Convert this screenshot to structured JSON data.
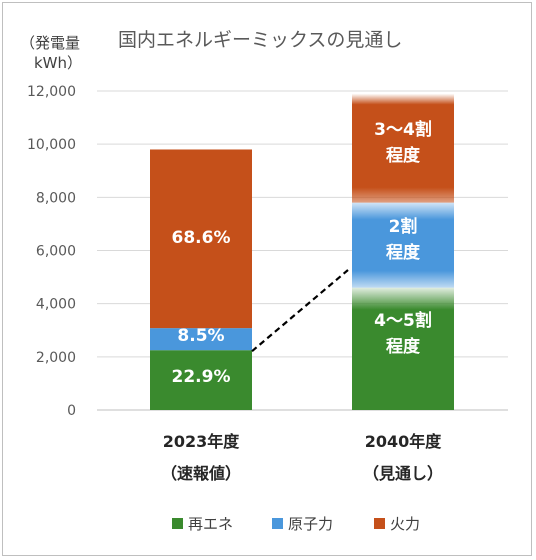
{
  "chart_data": {
    "type": "bar",
    "stacked": true,
    "title": "国内エネルギーミックスの見通し",
    "unit_label": [
      "（発電量",
      "kWh）"
    ],
    "ylim": [
      0,
      12000
    ],
    "yticks": [
      "0",
      "2,000",
      "4,000",
      "6,000",
      "8,000",
      "10,000",
      "12,000"
    ],
    "ytick_values": [
      0,
      2000,
      4000,
      6000,
      8000,
      10000,
      12000
    ],
    "grid": true,
    "legend_position": "bottom",
    "categories": [
      {
        "line1": "2023年度",
        "line2": "（速報値）"
      },
      {
        "line1": "2040年度",
        "line2": "（見通し）"
      }
    ],
    "series": [
      {
        "name": "再エネ",
        "color": "#3a8a2e",
        "values": [
          2250,
          4600
        ],
        "labels": [
          [
            "22.9%"
          ],
          [
            "4～5割",
            "程度"
          ]
        ]
      },
      {
        "name": "原子力",
        "color": "#4a97dc",
        "values": [
          830,
          3200
        ],
        "labels": [
          [
            "8.5%"
          ],
          [
            "2割",
            "程度"
          ]
        ]
      },
      {
        "name": "火力",
        "color": "#c5501a",
        "values": [
          6720,
          4100
        ],
        "labels": [
          [
            "68.6%"
          ],
          [
            "3～4割",
            "程度"
          ]
        ]
      }
    ],
    "annotation": "dashed line from top of 2023 renewables to 2040 renewables level"
  }
}
